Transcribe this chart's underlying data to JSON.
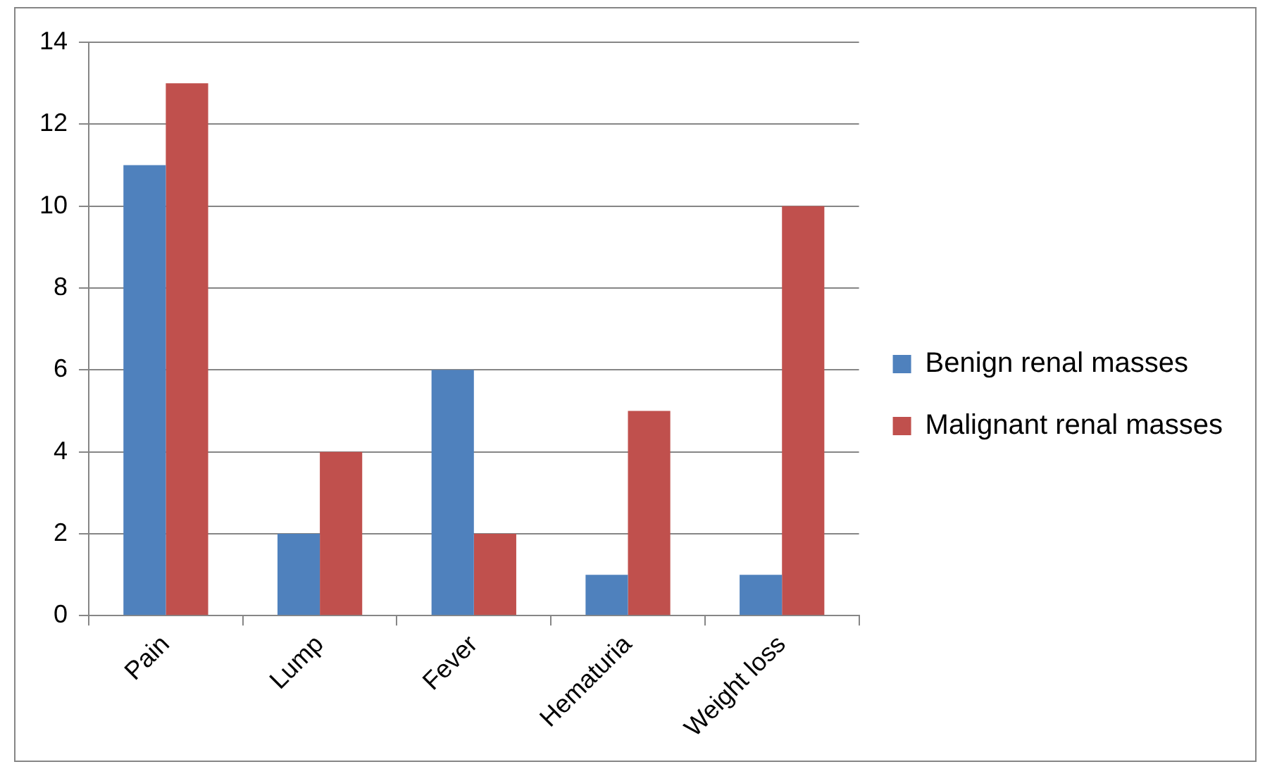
{
  "chart_data": {
    "type": "bar",
    "categories": [
      "Pain",
      "Lump",
      "Fever",
      "Hematuria",
      "Weight loss"
    ],
    "series": [
      {
        "name": "Benign renal masses",
        "color": "#4f81bd",
        "values": [
          11,
          2,
          6,
          1,
          1
        ]
      },
      {
        "name": "Malignant renal masses",
        "color": "#c0504d",
        "values": [
          13,
          4,
          2,
          5,
          10
        ]
      }
    ],
    "ylim": [
      0,
      14
    ],
    "yticks": [
      0,
      2,
      4,
      6,
      8,
      10,
      12,
      14
    ],
    "grid": "y",
    "legend": "right"
  }
}
